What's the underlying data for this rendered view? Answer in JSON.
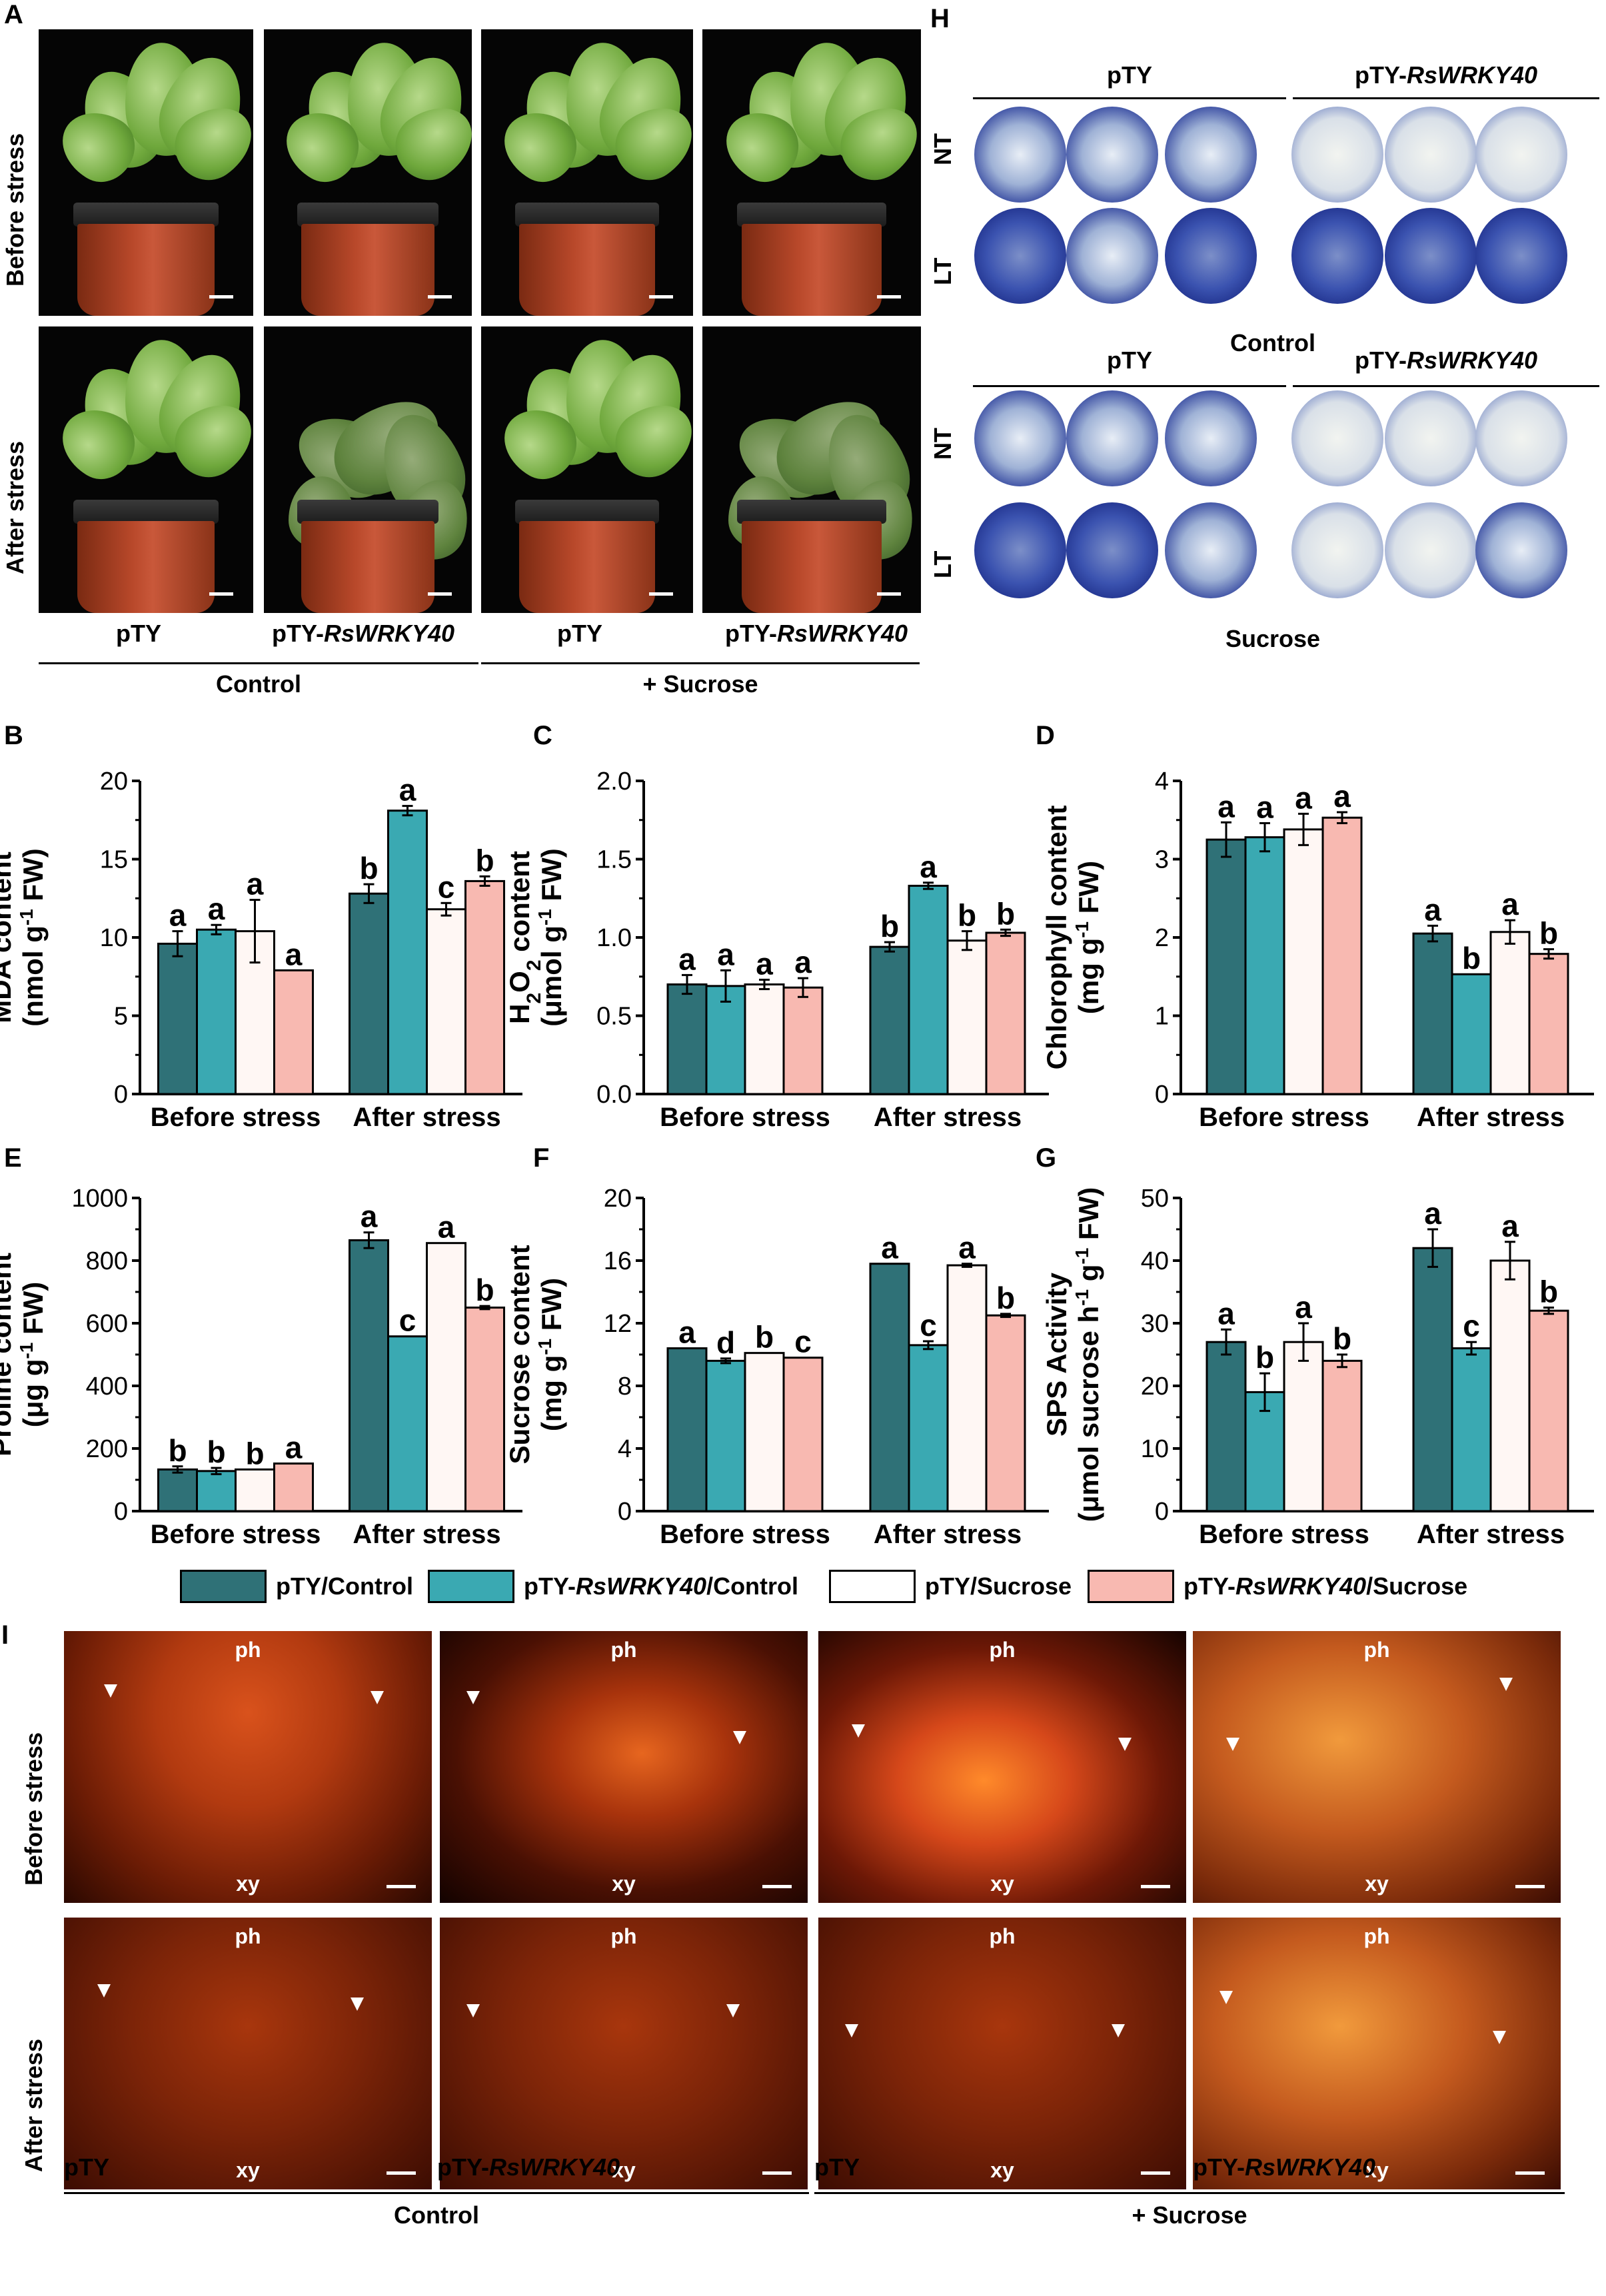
{
  "panel_labels": {
    "a": "A",
    "b": "B",
    "c": "C",
    "d": "D",
    "e": "E",
    "f": "F",
    "g": "G",
    "h": "H",
    "i": "I"
  },
  "panel_a": {
    "row_labels": [
      "Before stress",
      "After stress"
    ],
    "col_labels": [
      "pTY",
      "pTY-",
      "pTY",
      "pTY-"
    ],
    "col_italic": [
      "",
      "RsWRKY40",
      "",
      "RsWRKY40"
    ],
    "group_labels": [
      "Control",
      "+ Sucrose"
    ]
  },
  "panel_h": {
    "group1_col_labels": [
      "pTY",
      "pTY-"
    ],
    "group1_col_italic": [
      "",
      "RsWRKY40"
    ],
    "group2_col_labels": [
      "pTY",
      "pTY-"
    ],
    "group2_col_italic": [
      "",
      "RsWRKY40"
    ],
    "row_labels": [
      "NT",
      "LT",
      "NT",
      "LT"
    ],
    "group_labels": [
      "Control",
      "Sucrose"
    ]
  },
  "panel_i": {
    "row_labels": [
      "Before stress",
      "After stress"
    ],
    "ph_label": "ph",
    "xy_label": "xy",
    "col_labels": [
      "pTY",
      "pTY-",
      "pTY",
      "pTY-"
    ],
    "col_italic": [
      "",
      "RsWRKY40",
      "",
      "RsWRKY40"
    ],
    "group_labels": [
      "Control",
      "+ Sucrose"
    ]
  },
  "legend": {
    "items": [
      {
        "label": "pTY/Control",
        "italic": "",
        "suffix": "",
        "color": "#2f7177"
      },
      {
        "label": "pTY-",
        "italic": "RsWRKY40",
        "suffix": "/Control",
        "color": "#3aa9b2"
      },
      {
        "label": "pTY/Sucrose",
        "italic": "",
        "suffix": "",
        "color": "#ffffff"
      },
      {
        "label": "pTY-",
        "italic": "RsWRKY40",
        "suffix": "/Sucrose",
        "color": "#f8b9b1"
      }
    ]
  },
  "colors": {
    "s1": "#2f7177",
    "s2": "#3aa9b2",
    "s3": "#fff7f4",
    "s4": "#f8b9b1"
  },
  "chart_data": [
    {
      "id": "B",
      "type": "bar",
      "ylabel_line1": "MDA content",
      "ylabel_line2": "(nmol g",
      "ylabel_sup": "-1",
      "ylabel_tail": " FW)",
      "ylim": [
        0,
        20
      ],
      "yticks": [
        0,
        5,
        10,
        15,
        20
      ],
      "categories": [
        "Before stress",
        "After stress"
      ],
      "series": [
        {
          "name": "pTY/Control",
          "values": [
            9.6,
            12.8
          ],
          "errors": [
            0.8,
            0.6
          ],
          "letters": [
            "a",
            "b"
          ]
        },
        {
          "name": "pTY-RsWRKY40/Control",
          "values": [
            10.5,
            18.1
          ],
          "errors": [
            0.3,
            0.3
          ],
          "letters": [
            "a",
            "a"
          ]
        },
        {
          "name": "pTY/Sucrose",
          "values": [
            10.4,
            11.8
          ],
          "errors": [
            2.0,
            0.4
          ],
          "letters": [
            "a",
            "c"
          ]
        },
        {
          "name": "pTY-RsWRKY40/Sucrose",
          "values": [
            7.9,
            13.6
          ],
          "errors": [
            0,
            0.3
          ],
          "letters": [
            "a",
            "b"
          ]
        }
      ]
    },
    {
      "id": "C",
      "type": "bar",
      "ylabel_line1": "content",
      "ylabel_pre": "H",
      "ylabel_sub": "2",
      "ylabel_mid": "O",
      "ylabel_sub2": "2",
      "ylabel_line2": "(μmol g",
      "ylabel_sup": "-1",
      "ylabel_tail": " FW)",
      "ylim": [
        0,
        2.0
      ],
      "yticks": [
        "0.0",
        "0.5",
        "1.0",
        "1.5",
        "2.0"
      ],
      "categories": [
        "Before stress",
        "After stress"
      ],
      "series": [
        {
          "name": "pTY/Control",
          "values": [
            0.7,
            0.94
          ],
          "errors": [
            0.06,
            0.03
          ],
          "letters": [
            "a",
            "b"
          ]
        },
        {
          "name": "pTY-RsWRKY40/Control",
          "values": [
            0.69,
            1.33
          ],
          "errors": [
            0.1,
            0.02
          ],
          "letters": [
            "a",
            "a"
          ]
        },
        {
          "name": "pTY/Sucrose",
          "values": [
            0.7,
            0.98
          ],
          "errors": [
            0.03,
            0.06
          ],
          "letters": [
            "a",
            "b"
          ]
        },
        {
          "name": "pTY-RsWRKY40/Sucrose",
          "values": [
            0.68,
            1.03
          ],
          "errors": [
            0.06,
            0.02
          ],
          "letters": [
            "a",
            "b"
          ]
        }
      ]
    },
    {
      "id": "D",
      "type": "bar",
      "ylabel_line1": "Chlorophyll content",
      "ylabel_line2": "(mg g",
      "ylabel_sup": "-1",
      "ylabel_tail": " FW)",
      "ylim": [
        0,
        4
      ],
      "yticks": [
        0,
        1,
        2,
        3,
        4
      ],
      "categories": [
        "Before stress",
        "After stress"
      ],
      "series": [
        {
          "name": "pTY/Control",
          "values": [
            3.25,
            2.05
          ],
          "errors": [
            0.22,
            0.1
          ],
          "letters": [
            "a",
            "a"
          ]
        },
        {
          "name": "pTY-RsWRKY40/Control",
          "values": [
            3.28,
            1.53
          ],
          "errors": [
            0.18,
            0
          ],
          "letters": [
            "a",
            "b"
          ]
        },
        {
          "name": "pTY/Sucrose",
          "values": [
            3.38,
            2.07
          ],
          "errors": [
            0.2,
            0.15
          ],
          "letters": [
            "a",
            "a"
          ]
        },
        {
          "name": "pTY-RsWRKY40/Sucrose",
          "values": [
            3.53,
            1.79
          ],
          "errors": [
            0.07,
            0.06
          ],
          "letters": [
            "a",
            "b"
          ]
        }
      ]
    },
    {
      "id": "E",
      "type": "bar",
      "ylabel_line1": "Proline content",
      "ylabel_line2": "(μg g",
      "ylabel_sup": "-1",
      "ylabel_tail": " FW)",
      "ylim": [
        0,
        1000
      ],
      "yticks": [
        0,
        200,
        400,
        600,
        800,
        1000
      ],
      "categories": [
        "Before stress",
        "After stress"
      ],
      "series": [
        {
          "name": "pTY/Control",
          "values": [
            133,
            865
          ],
          "errors": [
            10,
            25
          ],
          "letters": [
            "b",
            "a"
          ]
        },
        {
          "name": "pTY-RsWRKY40/Control",
          "values": [
            128,
            558
          ],
          "errors": [
            10,
            0
          ],
          "letters": [
            "b",
            "c"
          ]
        },
        {
          "name": "pTY/Sucrose",
          "values": [
            133,
            856
          ],
          "errors": [
            0,
            0
          ],
          "letters": [
            "b",
            "a"
          ]
        },
        {
          "name": "pTY-RsWRKY40/Sucrose",
          "values": [
            152,
            650
          ],
          "errors": [
            0,
            5
          ],
          "letters": [
            "a",
            "b"
          ]
        }
      ]
    },
    {
      "id": "F",
      "type": "bar",
      "ylabel_line1": "Sucrose content",
      "ylabel_line2": "(mg g",
      "ylabel_sup": "-1",
      "ylabel_tail": " FW)",
      "ylim": [
        0,
        20
      ],
      "yticks": [
        0,
        4,
        8,
        12,
        16,
        20
      ],
      "categories": [
        "Before stress",
        "After stress"
      ],
      "series": [
        {
          "name": "pTY/Control",
          "values": [
            10.4,
            15.8
          ],
          "errors": [
            0,
            0
          ],
          "letters": [
            "a",
            "a"
          ]
        },
        {
          "name": "pTY-RsWRKY40/Control",
          "values": [
            9.6,
            10.6
          ],
          "errors": [
            0.15,
            0.25
          ],
          "letters": [
            "d",
            "c"
          ]
        },
        {
          "name": "pTY/Sucrose",
          "values": [
            10.1,
            15.7
          ],
          "errors": [
            0,
            0.1
          ],
          "letters": [
            "b",
            "a"
          ]
        },
        {
          "name": "pTY-RsWRKY40/Sucrose",
          "values": [
            9.8,
            12.5
          ],
          "errors": [
            0,
            0.1
          ],
          "letters": [
            "c",
            "b"
          ]
        }
      ]
    },
    {
      "id": "G",
      "type": "bar",
      "ylabel_line1": "SPS Activity",
      "ylabel_line2": "(μmol sucrose h",
      "ylabel_sup": "-1",
      "ylabel_mid2": " g",
      "ylabel_sup2": "-1",
      "ylabel_tail": " FW)",
      "ylim": [
        0,
        50
      ],
      "yticks": [
        0,
        10,
        20,
        30,
        40,
        50
      ],
      "categories": [
        "Before stress",
        "After stress"
      ],
      "series": [
        {
          "name": "pTY/Control",
          "values": [
            27,
            42
          ],
          "errors": [
            2,
            3
          ],
          "letters": [
            "a",
            "a"
          ]
        },
        {
          "name": "pTY-RsWRKY40/Control",
          "values": [
            19,
            26
          ],
          "errors": [
            3,
            1
          ],
          "letters": [
            "b",
            "c"
          ]
        },
        {
          "name": "pTY/Sucrose",
          "values": [
            27,
            40
          ],
          "errors": [
            3,
            3
          ],
          "letters": [
            "a",
            "a"
          ]
        },
        {
          "name": "pTY-RsWRKY40/Sucrose",
          "values": [
            24,
            32
          ],
          "errors": [
            1,
            0.5
          ],
          "letters": [
            "b",
            "b"
          ]
        }
      ]
    }
  ]
}
